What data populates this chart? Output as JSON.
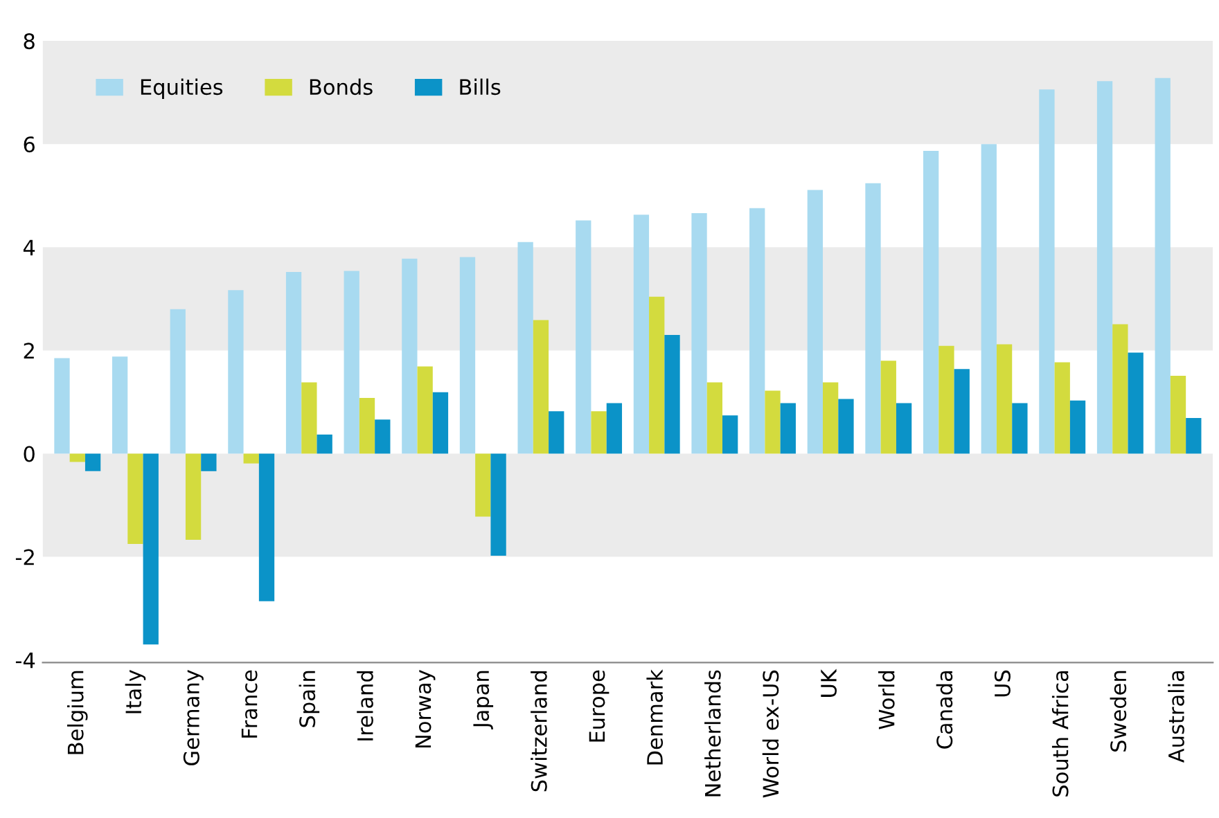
{
  "chart_data": {
    "type": "bar",
    "categories": [
      "Belgium",
      "Italy",
      "Germany",
      "France",
      "Spain",
      "Ireland",
      "Norway",
      "Japan",
      "Switzerland",
      "Europe",
      "Denmark",
      "Netherlands",
      "World ex-US",
      "UK",
      "World",
      "Canada",
      "US",
      "South Africa",
      "Sweden",
      "Australia"
    ],
    "series": [
      {
        "name": "Equities",
        "color": "#a8daf0",
        "values": [
          1.85,
          1.88,
          2.8,
          3.17,
          3.52,
          3.54,
          3.78,
          3.81,
          4.1,
          4.52,
          4.63,
          4.66,
          4.76,
          5.11,
          5.24,
          5.87,
          6.0,
          7.06,
          7.22,
          7.28
        ]
      },
      {
        "name": "Bonds",
        "color": "#d3db3e",
        "values": [
          -0.16,
          -1.75,
          -1.67,
          -0.19,
          1.38,
          1.08,
          1.69,
          -1.22,
          2.59,
          0.82,
          3.04,
          1.38,
          1.22,
          1.38,
          1.8,
          2.09,
          2.12,
          1.77,
          2.51,
          1.51
        ]
      },
      {
        "name": "Bills",
        "color": "#0b93c8",
        "values": [
          -0.34,
          -3.7,
          -0.34,
          -2.86,
          0.37,
          0.66,
          1.19,
          -1.98,
          0.82,
          0.98,
          2.3,
          0.74,
          0.98,
          1.06,
          0.98,
          1.64,
          0.98,
          1.03,
          1.96,
          0.69
        ]
      }
    ],
    "ylim": [
      -4.05,
      8
    ],
    "yticks": [
      -4,
      -2,
      0,
      2,
      4,
      6,
      8
    ],
    "bands": [
      {
        "axis": "y",
        "from": 6,
        "to": 8,
        "color": "#ebebeb"
      },
      {
        "axis": "y",
        "from": 2,
        "to": 4,
        "color": "#ebebeb"
      },
      {
        "axis": "y",
        "from": -2,
        "to": 0,
        "color": "#ebebeb"
      }
    ],
    "legend": "top left",
    "grid": false
  }
}
